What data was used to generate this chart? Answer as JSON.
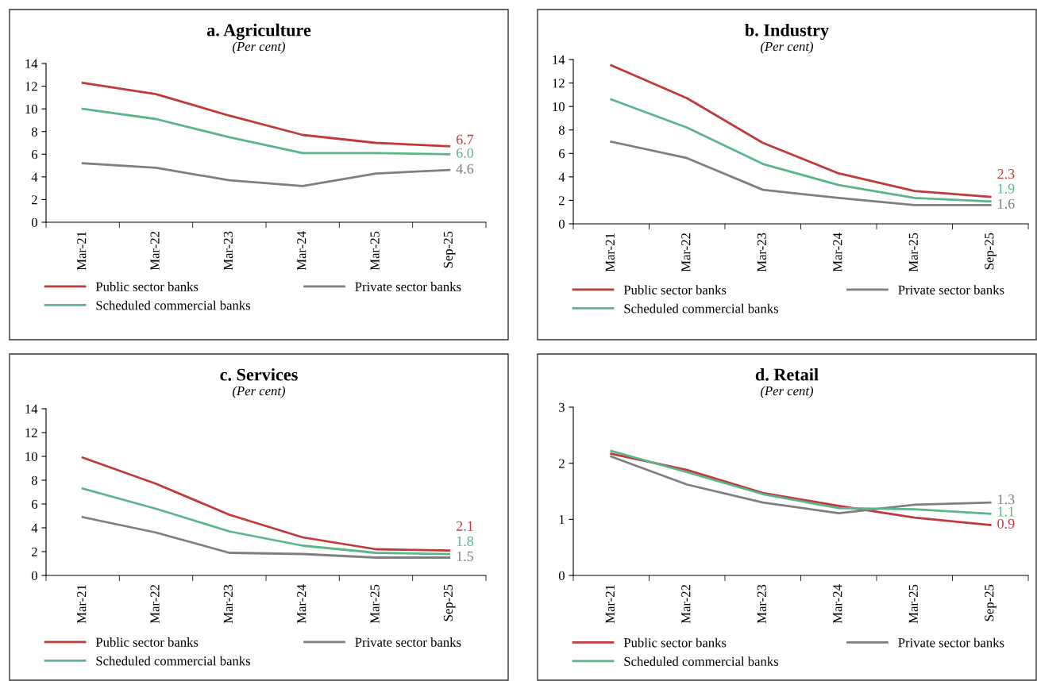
{
  "chart_data": [
    {
      "type": "line",
      "title": "a. Agriculture",
      "subtitle": "(Per cent)",
      "categories": [
        "Mar-21",
        "Mar-22",
        "Mar-23",
        "Mar-24",
        "Mar-25",
        "Sep-25"
      ],
      "ylim": [
        0,
        14
      ],
      "yticks": [
        0,
        2,
        4,
        6,
        8,
        10,
        12,
        14
      ],
      "legend": "bottom",
      "grid": false,
      "series": [
        {
          "name": "Public sector banks",
          "color": "#c0393b",
          "values": [
            12.3,
            11.3,
            9.4,
            7.7,
            7.0,
            6.7
          ],
          "value_labels": [
            null,
            null,
            null,
            null,
            null,
            "6.7"
          ]
        },
        {
          "name": "Private sector banks",
          "color": "#7f7f7f",
          "values": [
            5.2,
            4.8,
            3.7,
            3.2,
            4.3,
            4.6
          ],
          "value_labels": [
            null,
            null,
            null,
            null,
            null,
            "4.6"
          ]
        },
        {
          "name": "Scheduled commercial banks",
          "color": "#5bb58a",
          "values": [
            10.0,
            9.1,
            7.5,
            6.1,
            6.1,
            6.0
          ],
          "value_labels": [
            null,
            null,
            null,
            null,
            null,
            "6.0"
          ]
        }
      ]
    },
    {
      "type": "line",
      "title": "b. Industry",
      "subtitle": "(Per cent)",
      "categories": [
        "Mar-21",
        "Mar-22",
        "Mar-23",
        "Mar-24",
        "Mar-25",
        "Sep-25"
      ],
      "ylim": [
        0,
        14
      ],
      "yticks": [
        0,
        2,
        4,
        6,
        8,
        10,
        12,
        14
      ],
      "legend": "bottom",
      "grid": false,
      "series": [
        {
          "name": "Public sector banks",
          "color": "#c0393b",
          "values": [
            13.5,
            10.7,
            6.9,
            4.3,
            2.8,
            2.3
          ],
          "value_labels": [
            null,
            null,
            null,
            null,
            null,
            "2.3"
          ]
        },
        {
          "name": "Private sector banks",
          "color": "#7f7f7f",
          "values": [
            7.0,
            5.6,
            2.9,
            2.2,
            1.6,
            1.6
          ],
          "value_labels": [
            null,
            null,
            null,
            null,
            null,
            "1.6"
          ]
        },
        {
          "name": "Scheduled commercial banks",
          "color": "#5bb58a",
          "values": [
            10.6,
            8.2,
            5.1,
            3.3,
            2.2,
            1.9
          ],
          "value_labels": [
            null,
            null,
            null,
            null,
            null,
            "1.9"
          ]
        }
      ]
    },
    {
      "type": "line",
      "title": "c. Services",
      "subtitle": "(Per cent)",
      "categories": [
        "Mar-21",
        "Mar-22",
        "Mar-23",
        "Mar-24",
        "Mar-25",
        "Sep-25"
      ],
      "ylim": [
        0,
        14
      ],
      "yticks": [
        0,
        2,
        4,
        6,
        8,
        10,
        12,
        14
      ],
      "legend": "bottom",
      "grid": false,
      "series": [
        {
          "name": "Public sector banks",
          "color": "#c0393b",
          "values": [
            9.9,
            7.7,
            5.1,
            3.2,
            2.2,
            2.1
          ],
          "value_labels": [
            null,
            null,
            null,
            null,
            null,
            "2.1"
          ]
        },
        {
          "name": "Private sector banks",
          "color": "#7f7f7f",
          "values": [
            4.9,
            3.6,
            1.9,
            1.8,
            1.5,
            1.5
          ],
          "value_labels": [
            null,
            null,
            null,
            null,
            null,
            "1.5"
          ]
        },
        {
          "name": "Scheduled commercial banks",
          "color": "#5bb58a",
          "values": [
            7.3,
            5.6,
            3.7,
            2.5,
            1.9,
            1.8
          ],
          "value_labels": [
            null,
            null,
            null,
            null,
            null,
            "1.8"
          ]
        }
      ]
    },
    {
      "type": "line",
      "title": "d. Retail",
      "subtitle": "(Per cent)",
      "categories": [
        "Mar-21",
        "Mar-22",
        "Mar-23",
        "Mar-24",
        "Mar-25",
        "Sep-25"
      ],
      "ylim": [
        0,
        3
      ],
      "yticks": [
        0,
        1,
        2,
        3
      ],
      "legend": "bottom",
      "grid": false,
      "series": [
        {
          "name": "Public sector banks",
          "color": "#c0393b",
          "values": [
            2.17,
            1.88,
            1.47,
            1.24,
            1.03,
            0.9
          ],
          "value_labels": [
            null,
            null,
            null,
            null,
            null,
            "0.9"
          ]
        },
        {
          "name": "Private sector banks",
          "color": "#7f7f7f",
          "values": [
            2.12,
            1.62,
            1.3,
            1.11,
            1.26,
            1.3
          ],
          "value_labels": [
            null,
            null,
            null,
            null,
            null,
            "1.3"
          ]
        },
        {
          "name": "Scheduled commercial banks",
          "color": "#5bb58a",
          "values": [
            2.22,
            1.84,
            1.45,
            1.2,
            1.18,
            1.1
          ],
          "value_labels": [
            null,
            null,
            null,
            null,
            null,
            "1.1"
          ]
        }
      ]
    }
  ]
}
